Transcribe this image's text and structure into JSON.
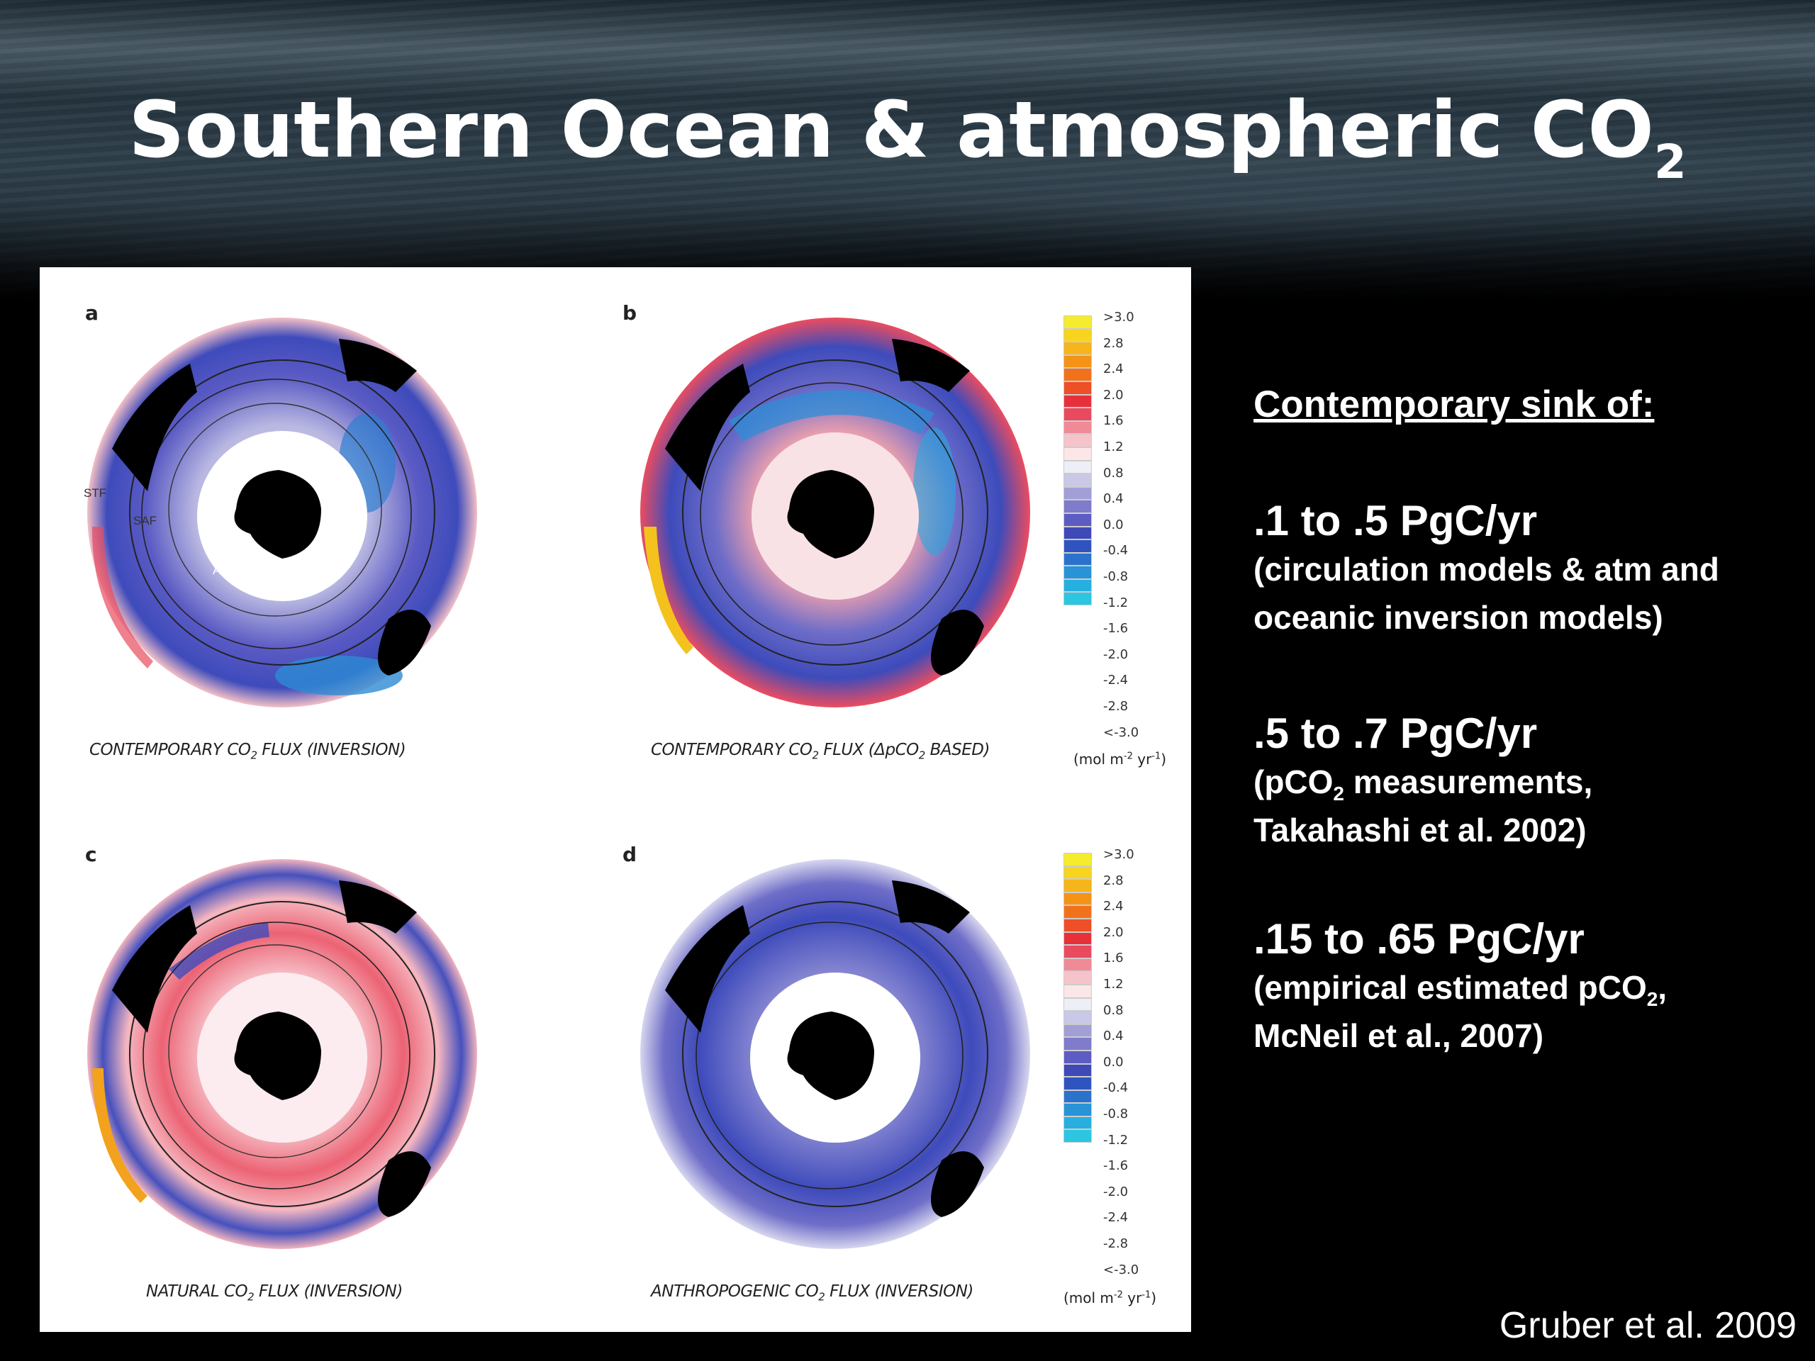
{
  "title": {
    "main": "Southern Ocean & atmospheric CO",
    "sub": "2"
  },
  "panels": [
    {
      "label": "a",
      "caption_pre": "CONTEMPORARY CO",
      "caption_sub": "2",
      "caption_post": " FLUX (INVERSION)",
      "fronts": [
        "STF",
        "SAF",
        "APF"
      ]
    },
    {
      "label": "b",
      "caption_pre": "CONTEMPORARY CO",
      "caption_sub": "2",
      "caption_post": " FLUX (ΔpCO",
      "caption_sub2": "2",
      "caption_post2": " BASED)"
    },
    {
      "label": "c",
      "caption_pre": "NATURAL CO",
      "caption_sub": "2",
      "caption_post": " FLUX (INVERSION)"
    },
    {
      "label": "d",
      "caption_pre": "ANTHROPOGENIC CO",
      "caption_sub": "2",
      "caption_post": " FLUX (INVERSION)"
    }
  ],
  "colorbar": {
    "ticks": [
      ">3.0",
      "2.8",
      "2.4",
      "2.0",
      "1.6",
      "1.2",
      "0.8",
      "0.4",
      "0.0",
      "-0.4",
      "-0.8",
      "-1.2",
      "-1.6",
      "-2.0",
      "-2.4",
      "-2.8",
      "<-3.0"
    ],
    "unit_pre": "(mol m",
    "unit_sup": "-2",
    "unit_mid": " yr",
    "unit_sup2": "-1",
    "unit_post": ")",
    "colors": [
      "#f5ec2e",
      "#f7d51f",
      "#f6b51a",
      "#f59317",
      "#f2721c",
      "#ee4f26",
      "#e8303b",
      "#e94a5e",
      "#f08a97",
      "#f7c3ca",
      "#fbe6e8",
      "#eeeef7",
      "#c9c8e6",
      "#a19fd6",
      "#7e7ccb",
      "#5d5cc2",
      "#3f49b8",
      "#2f54c0",
      "#2a72cc",
      "#2893d7",
      "#27b0df",
      "#2cc6e1"
    ]
  },
  "sidebar": {
    "heading": "Contemporary sink of:",
    "items": [
      {
        "value": ".1 to .5 PgC/yr",
        "note1": "(circulation models & atm and",
        "note2": "oceanic inversion models)"
      },
      {
        "value": ".5 to .7 PgC/yr",
        "note1a": "(pCO",
        "note1sub": "2",
        "note1b": " measurements,",
        "note2": "Takahashi et al. 2002)"
      },
      {
        "value": ".15  to .65 PgC/yr",
        "note1a": "(empirical estimated pCO",
        "note1sub": "2",
        "note1b": ",",
        "note2": "McNeil et al., 2007)"
      }
    ]
  },
  "citation": "Gruber et al. 2009"
}
